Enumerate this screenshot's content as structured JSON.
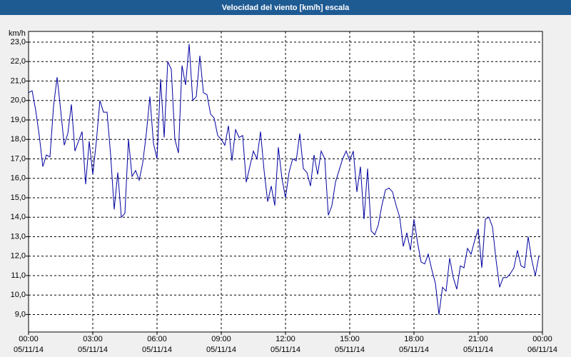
{
  "chart_data": {
    "type": "line",
    "title": "Velocidad del viento [km/h] escala",
    "y_label": "km/h",
    "xlim": [
      "05/11/14 00:00",
      "06/11/14 00:00"
    ],
    "xticks": [
      {
        "value": "05/11/14 00:00",
        "label": [
          "00:00",
          "05/11/14"
        ]
      },
      {
        "value": "05/11/14 03:00",
        "label": [
          "03:00",
          "05/11/14"
        ]
      },
      {
        "value": "05/11/14 06:00",
        "label": [
          "06:00",
          "05/11/14"
        ]
      },
      {
        "value": "05/11/14 09:00",
        "label": [
          "09:00",
          "05/11/14"
        ]
      },
      {
        "value": "05/11/14 12:00",
        "label": [
          "12:00",
          "05/11/14"
        ]
      },
      {
        "value": "05/11/14 15:00",
        "label": [
          "15:00",
          "05/11/14"
        ]
      },
      {
        "value": "05/11/14 18:00",
        "label": [
          "18:00",
          "05/11/14"
        ]
      },
      {
        "value": "05/11/14 21:00",
        "label": [
          "21:00",
          "05/11/14"
        ]
      },
      {
        "value": "06/11/14 00:00",
        "label": [
          "00:00",
          "06/11/14"
        ]
      }
    ],
    "ylim": [
      8.1,
      23.55
    ],
    "yticks": [
      {
        "value": 9,
        "label": "9,0"
      },
      {
        "value": 10,
        "label": "10,0"
      },
      {
        "value": 11,
        "label": "11,0"
      },
      {
        "value": 12,
        "label": "12,0"
      },
      {
        "value": 13,
        "label": "13,0"
      },
      {
        "value": 14,
        "label": "14,0"
      },
      {
        "value": 15,
        "label": "15,0"
      },
      {
        "value": 16,
        "label": "16,0"
      },
      {
        "value": 17,
        "label": "17,0"
      },
      {
        "value": 18,
        "label": "18,0"
      },
      {
        "value": 19,
        "label": "19,0"
      },
      {
        "value": 20,
        "label": "20,0"
      },
      {
        "value": 21,
        "label": "21,0"
      },
      {
        "value": 22,
        "label": "22,0"
      },
      {
        "value": 23,
        "label": "23,0"
      }
    ],
    "grid": true,
    "x": [
      "05/11/14 00:00",
      "05/11/14 00:10",
      "05/11/14 00:20",
      "05/11/14 00:30",
      "05/11/14 00:40",
      "05/11/14 00:50",
      "05/11/14 01:00",
      "05/11/14 01:10",
      "05/11/14 01:20",
      "05/11/14 01:30",
      "05/11/14 01:40",
      "05/11/14 01:50",
      "05/11/14 02:00",
      "05/11/14 02:10",
      "05/11/14 02:20",
      "05/11/14 02:30",
      "05/11/14 02:40",
      "05/11/14 02:50",
      "05/11/14 03:00",
      "05/11/14 03:10",
      "05/11/14 03:20",
      "05/11/14 03:30",
      "05/11/14 03:40",
      "05/11/14 03:50",
      "05/11/14 04:00",
      "05/11/14 04:10",
      "05/11/14 04:20",
      "05/11/14 04:30",
      "05/11/14 04:40",
      "05/11/14 04:50",
      "05/11/14 05:00",
      "05/11/14 05:10",
      "05/11/14 05:20",
      "05/11/14 05:30",
      "05/11/14 05:40",
      "05/11/14 05:50",
      "05/11/14 06:00",
      "05/11/14 06:10",
      "05/11/14 06:20",
      "05/11/14 06:30",
      "05/11/14 06:40",
      "05/11/14 06:50",
      "05/11/14 07:00",
      "05/11/14 07:10",
      "05/11/14 07:20",
      "05/11/14 07:30",
      "05/11/14 07:40",
      "05/11/14 07:50",
      "05/11/14 08:00",
      "05/11/14 08:10",
      "05/11/14 08:20",
      "05/11/14 08:30",
      "05/11/14 08:40",
      "05/11/14 08:50",
      "05/11/14 09:00",
      "05/11/14 09:10",
      "05/11/14 09:20",
      "05/11/14 09:30",
      "05/11/14 09:40",
      "05/11/14 09:50",
      "05/11/14 10:00",
      "05/11/14 10:10",
      "05/11/14 10:20",
      "05/11/14 10:30",
      "05/11/14 10:40",
      "05/11/14 10:50",
      "05/11/14 11:00",
      "05/11/14 11:10",
      "05/11/14 11:20",
      "05/11/14 11:30",
      "05/11/14 11:40",
      "05/11/14 11:50",
      "05/11/14 12:00",
      "05/11/14 12:10",
      "05/11/14 12:20",
      "05/11/14 12:30",
      "05/11/14 12:40",
      "05/11/14 12:50",
      "05/11/14 13:00",
      "05/11/14 13:10",
      "05/11/14 13:20",
      "05/11/14 13:30",
      "05/11/14 13:40",
      "05/11/14 13:50",
      "05/11/14 14:00",
      "05/11/14 14:10",
      "05/11/14 14:20",
      "05/11/14 14:30",
      "05/11/14 14:40",
      "05/11/14 14:50",
      "05/11/14 15:00",
      "05/11/14 15:10",
      "05/11/14 15:20",
      "05/11/14 15:30",
      "05/11/14 15:40",
      "05/11/14 15:50",
      "05/11/14 16:00",
      "05/11/14 16:10",
      "05/11/14 16:20",
      "05/11/14 16:30",
      "05/11/14 16:40",
      "05/11/14 16:50",
      "05/11/14 17:00",
      "05/11/14 17:10",
      "05/11/14 17:20",
      "05/11/14 17:30",
      "05/11/14 17:40",
      "05/11/14 17:50",
      "05/11/14 18:00",
      "05/11/14 18:10",
      "05/11/14 18:20",
      "05/11/14 18:30",
      "05/11/14 18:40",
      "05/11/14 18:50",
      "05/11/14 19:00",
      "05/11/14 19:10",
      "05/11/14 19:20",
      "05/11/14 19:30",
      "05/11/14 19:40",
      "05/11/14 19:50",
      "05/11/14 20:00",
      "05/11/14 20:10",
      "05/11/14 20:20",
      "05/11/14 20:30",
      "05/11/14 20:40",
      "05/11/14 20:50",
      "05/11/14 21:00",
      "05/11/14 21:10",
      "05/11/14 21:20",
      "05/11/14 21:30",
      "05/11/14 21:40",
      "05/11/14 21:50",
      "05/11/14 22:00",
      "05/11/14 22:10",
      "05/11/14 22:20",
      "05/11/14 22:30",
      "05/11/14 22:40",
      "05/11/14 22:50",
      "05/11/14 23:00",
      "05/11/14 23:10",
      "05/11/14 23:20",
      "05/11/14 23:30",
      "05/11/14 23:40",
      "05/11/14 23:50"
    ],
    "series": [
      {
        "name": "Velocidad del viento",
        "color": "#0000a0",
        "values": [
          20.4,
          20.5,
          19.5,
          18.2,
          16.6,
          17.2,
          17.1,
          19.7,
          21.2,
          19.5,
          17.7,
          18.3,
          19.8,
          17.4,
          17.9,
          18.4,
          15.7,
          17.9,
          16.2,
          17.9,
          20.0,
          19.4,
          19.4,
          17.2,
          14.4,
          16.3,
          14.0,
          14.2,
          18.0,
          16.1,
          16.4,
          15.9,
          16.8,
          18.3,
          20.2,
          17.8,
          17.0,
          21.1,
          18.1,
          22.0,
          21.6,
          18.0,
          17.3,
          21.8,
          20.8,
          22.9,
          20.0,
          20.2,
          22.3,
          20.4,
          20.3,
          19.3,
          19.1,
          18.2,
          18.0,
          17.7,
          18.7,
          16.9,
          18.5,
          18.1,
          18.2,
          15.8,
          16.6,
          17.4,
          17.0,
          18.4,
          16.4,
          14.8,
          15.6,
          14.6,
          17.6,
          16.0,
          15.0,
          16.3,
          17.0,
          16.9,
          18.3,
          16.5,
          16.3,
          15.6,
          17.2,
          16.2,
          17.4,
          17.0,
          14.1,
          14.6,
          15.8,
          16.4,
          17.0,
          17.4,
          16.9,
          17.4,
          15.3,
          16.6,
          13.9,
          16.5,
          13.3,
          13.1,
          13.6,
          14.6,
          15.4,
          15.5,
          15.3,
          14.6,
          14.0,
          12.5,
          13.2,
          12.3,
          13.9,
          12.7,
          11.7,
          11.6,
          12.1,
          11.3,
          10.6,
          9.0,
          10.4,
          10.2,
          11.9,
          10.9,
          10.3,
          11.5,
          11.4,
          12.4,
          12.1,
          12.8,
          13.4,
          11.4,
          13.9,
          14.0,
          13.5,
          11.8,
          10.4,
          10.9,
          10.9,
          11.1,
          11.4,
          12.3,
          11.5,
          11.4,
          13.0,
          11.8,
          11.0,
          12.0
        ]
      }
    ]
  }
}
